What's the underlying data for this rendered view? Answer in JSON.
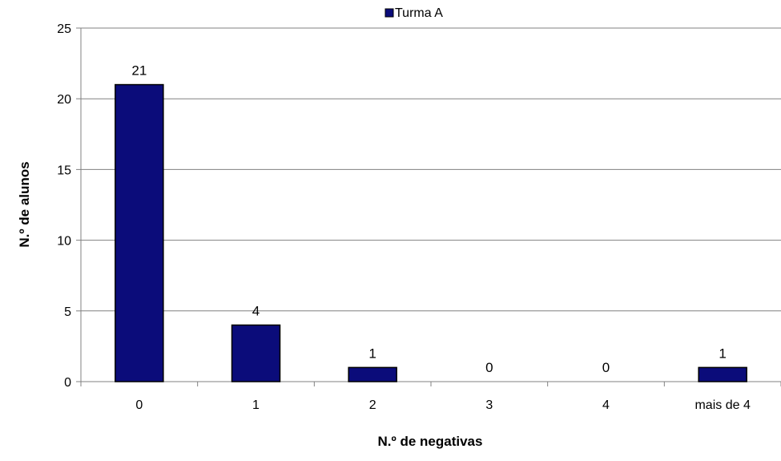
{
  "chart_data": {
    "type": "bar",
    "categories": [
      "0",
      "1",
      "2",
      "3",
      "4",
      "mais de 4"
    ],
    "series": [
      {
        "name": "Turma A",
        "values": [
          21,
          4,
          1,
          0,
          0,
          1
        ],
        "color": "#0b0c7a"
      }
    ],
    "xlabel": "N.º de negativas",
    "ylabel": "N.º de alunos",
    "ylim": [
      0,
      25
    ],
    "yticks": [
      0,
      5,
      10,
      15,
      20,
      25
    ],
    "grid": true,
    "legend": "top-center",
    "data_labels": true
  },
  "colors": {
    "bar_fill": "#0b0c7a",
    "bar_stroke": "#000000",
    "grid": "#808080",
    "axis": "#808080"
  }
}
